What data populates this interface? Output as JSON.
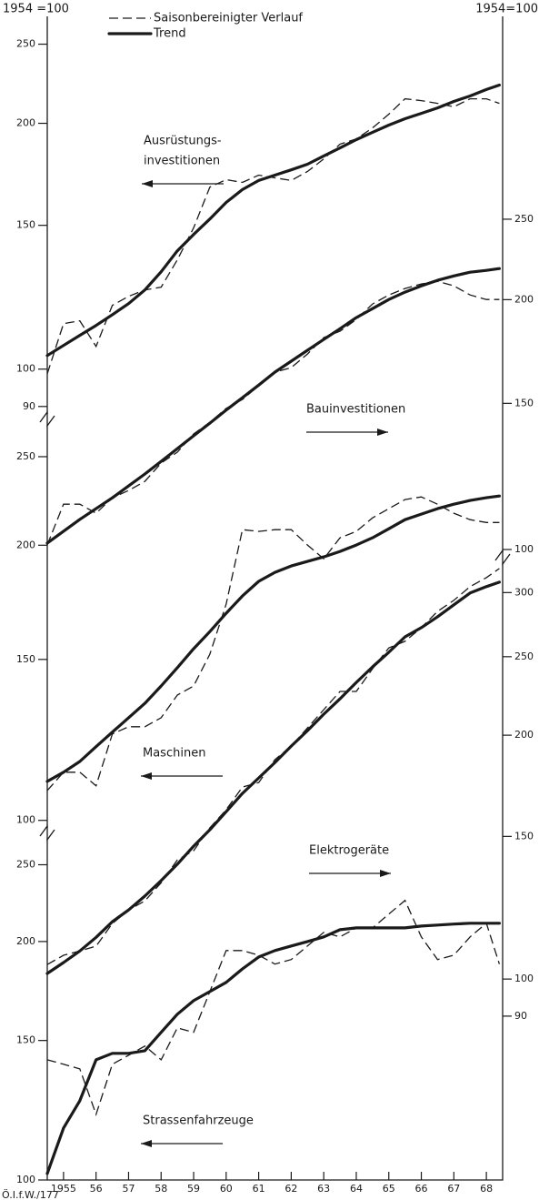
{
  "chart_data": {
    "type": "line",
    "left_axis_note": "1954 =100",
    "right_axis_note": "1954=100",
    "footnote": "Ö.I.f.W./177",
    "log_scale": true,
    "series": [
      {
        "name": "Saisonbereinigter Verlauf",
        "style": "dashed",
        "color": "#1a1a1a"
      },
      {
        "name": "Trend",
        "style": "solid",
        "color": "#1a1a1a"
      }
    ],
    "x": [
      1955,
      1955.5,
      1956,
      1956.5,
      1957,
      1957.5,
      1958,
      1958.5,
      1959,
      1959.5,
      1960,
      1960.5,
      1961,
      1961.5,
      1962,
      1962.5,
      1963,
      1963.5,
      1964,
      1964.5,
      1965,
      1965.5,
      1966,
      1966.5,
      1967,
      1967.5,
      1968,
      1968.5,
      1968.9
    ],
    "xlim": [
      1955,
      1969
    ],
    "xticks": [
      {
        "value": 1955.5,
        "label": "1955"
      },
      {
        "value": 1956.5,
        "label": "56"
      },
      {
        "value": 1957.5,
        "label": "57"
      },
      {
        "value": 1958.5,
        "label": "58"
      },
      {
        "value": 1959.5,
        "label": "59"
      },
      {
        "value": 1960.5,
        "label": "60"
      },
      {
        "value": 1961.5,
        "label": "61"
      },
      {
        "value": 1962.5,
        "label": "62"
      },
      {
        "value": 1963.5,
        "label": "63"
      },
      {
        "value": 1964.5,
        "label": "64"
      },
      {
        "value": 1965.5,
        "label": "65"
      },
      {
        "value": 1966.5,
        "label": "66"
      },
      {
        "value": 1967.5,
        "label": "67"
      },
      {
        "value": 1968.5,
        "label": "68"
      }
    ],
    "panels": [
      {
        "label": [
          "Ausrüstungs-",
          "investitionen"
        ],
        "arrow": "left",
        "axis": "left",
        "ylim": [
          87,
          269
        ],
        "yticks": [
          90,
          100,
          150,
          200,
          250
        ],
        "values": [
          [
            98.7,
            113.7,
            114.6,
            106.6,
            119.7,
            122.8,
            125.0,
            126.0,
            136.1,
            148.9,
            167.1,
            170.6,
            169.3,
            172.8,
            171.5,
            170.2,
            174.6,
            180.9,
            188.6,
            191.4,
            197.4,
            205.2,
            214.3,
            213.2,
            211.6,
            209.5,
            214.3,
            214.3,
            211.6
          ],
          [
            103.9,
            106.9,
            110,
            113.1,
            116.6,
            120.3,
            125.0,
            131.6,
            139.6,
            146.2,
            152.7,
            160,
            165.9,
            170.2,
            172.8,
            175.4,
            178.2,
            182.4,
            186.6,
            191,
            195,
            199,
            202.6,
            205.7,
            208.9,
            212.7,
            216,
            220,
            222.8
          ]
        ]
      },
      {
        "label": [
          "Bauinvestitionen"
        ],
        "arrow": "right",
        "axis": "right",
        "ylim": [
          98,
          257
        ],
        "yticks": [
          100,
          150,
          200,
          250
        ],
        "values": [
          [
            101.3,
            113.4,
            113.4,
            110.6,
            115.4,
            117.8,
            120.8,
            127.1,
            131.0,
            137.8,
            142.3,
            147.9,
            151.6,
            157.5,
            163.6,
            165.6,
            172.0,
            180.0,
            183.2,
            189.3,
            197.6,
            202.6,
            206.3,
            208.9,
            210.4,
            207.8,
            202.6,
            200.1,
            200.1
          ],
          [
            101.8,
            105.2,
            108.7,
            112.0,
            115.4,
            119.3,
            123.3,
            127.7,
            132.3,
            137.1,
            142.0,
            147.2,
            152.4,
            157.8,
            163.6,
            168.6,
            173.8,
            179.1,
            184.5,
            190.3,
            195.1,
            200.1,
            204.2,
            207.8,
            211.0,
            213.6,
            215.8,
            216.9,
            218.0
          ]
        ]
      },
      {
        "label": [
          "Maschinen"
        ],
        "arrow": "left",
        "axis": "left",
        "ylim": [
          97,
          269
        ],
        "yticks": [
          100,
          150,
          200,
          250
        ],
        "values": [
          [
            107.8,
            112.9,
            112.9,
            109.1,
            124.3,
            126.6,
            126.6,
            129.5,
            137.1,
            140.3,
            152.0,
            172.4,
            208.0,
            207.1,
            208.0,
            208.0,
            200.1,
            193.3,
            203.8,
            207.1,
            214.3,
            219.3,
            224.4,
            225.9,
            221.8,
            216.8,
            213.3,
            211.8,
            211.8
          ],
          [
            110.3,
            112.9,
            116.0,
            120.4,
            124.9,
            129.5,
            134.3,
            140.3,
            146.9,
            154.1,
            160.9,
            168.5,
            176.0,
            182.6,
            186.8,
            189.8,
            192.0,
            194.2,
            196.9,
            200.1,
            203.8,
            208.5,
            213.3,
            216.3,
            219.3,
            221.8,
            223.9,
            225.4,
            226.4
          ]
        ]
      },
      {
        "label": [
          "Elektrogeräte"
        ],
        "arrow": "right",
        "axis": "right",
        "ylim": [
          87,
          327
        ],
        "yticks": [
          90,
          100,
          150,
          200,
          250,
          300
        ],
        "values": [
          [
            104.2,
            107.0,
            108.3,
            109.8,
            117.1,
            121.7,
            124.9,
            131.5,
            140.3,
            144.0,
            153.7,
            161.8,
            172.6,
            174.8,
            186.6,
            193.9,
            204.2,
            215.1,
            226.5,
            226.5,
            241.6,
            256.4,
            261.2,
            271.5,
            284.4,
            293.4,
            305.1,
            313.0,
            321.2
          ],
          [
            101.6,
            104.8,
            108.3,
            112.6,
            117.7,
            121.7,
            126.6,
            132.3,
            138.6,
            145.9,
            152.9,
            160.9,
            169.5,
            177.1,
            185.1,
            193.9,
            202.6,
            212.3,
            221.8,
            232.4,
            242.9,
            253.2,
            264.5,
            271.5,
            280.1,
            289.7,
            299.6,
            305.1,
            309.0
          ]
        ]
      },
      {
        "label": [
          "Strassenfahrzeuge"
        ],
        "arrow": "left",
        "axis": "left",
        "ylim": [
          100,
          271
        ],
        "yticks": [
          100,
          150,
          200,
          250
        ],
        "values": [
          [
            141.8,
            140.0,
            138.1,
            121.0,
            140.0,
            143.7,
            147.6,
            141.8,
            155.6,
            153.6,
            172.9,
            194.8,
            194.8,
            192.2,
            187.3,
            189.8,
            197.4,
            205.4,
            202.7,
            208.1,
            208.1,
            216.6,
            225.4,
            202.7,
            189.8,
            192.2,
            202.7,
            210.9,
            187.3
          ],
          [
            101.9,
            116.3,
            125.9,
            141.8,
            144.5,
            144.5,
            145.6,
            153.6,
            161.9,
            168.4,
            172.9,
            177.6,
            184.7,
            191.2,
            194.8,
            197.4,
            200.0,
            202.7,
            207.0,
            208.1,
            208.1,
            208.1,
            208.1,
            209.2,
            209.8,
            210.4,
            210.9,
            210.9,
            210.9
          ]
        ]
      }
    ]
  }
}
